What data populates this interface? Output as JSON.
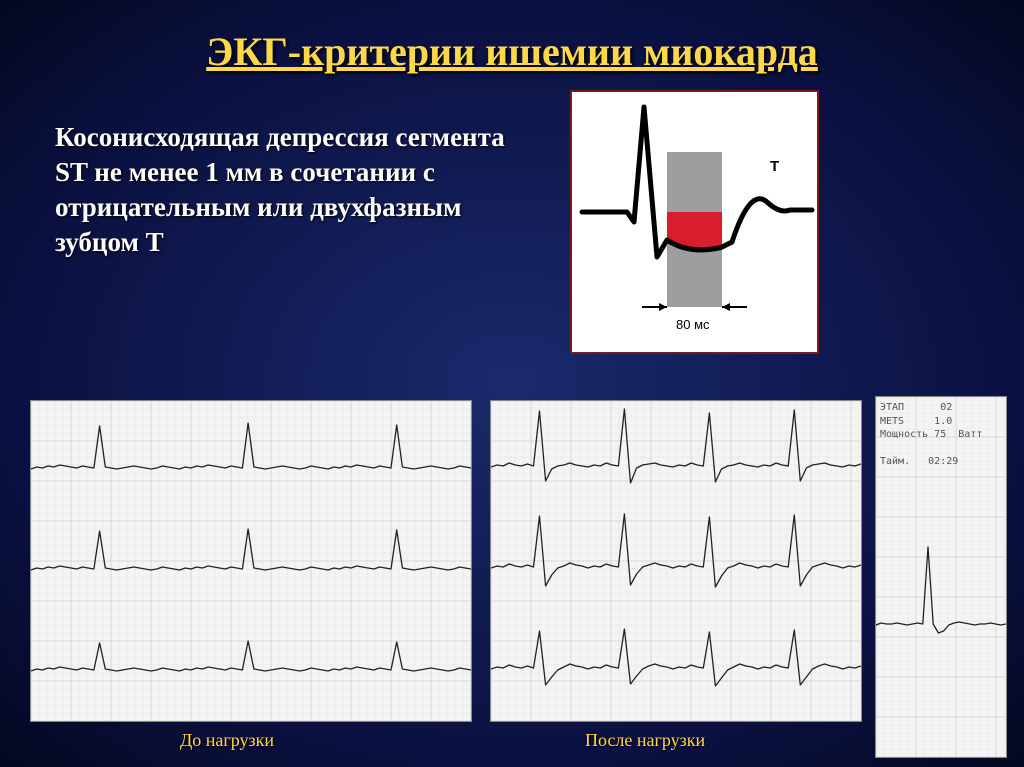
{
  "title": "ЭКГ-критерии ишемии миокарда",
  "body_text": "Косонисходящая депрессия сегмента ST не менее 1 мм в сочетании с отрицательным или двухфазным зубцом T",
  "diagram": {
    "t_label": "T",
    "duration_label": "80 мс",
    "bg": "#ffffff",
    "gray_band": "#9e9e9e",
    "red_fill": "#d81e2c",
    "waveform_stroke": "#000000",
    "arrow_stroke": "#000000"
  },
  "captions": {
    "left": "До нагрузки",
    "mid": "После нагрузки"
  },
  "right_info": "ЭТАП      02\nMETS     1.0\nМощность 75  Ватт\n\nТайм.   02:29",
  "ecg": {
    "grid_minor": "#e4e4e4",
    "grid_major": "#cfcfcf",
    "trace_stroke": "#222222",
    "left": {
      "rows": [
        [
          2,
          4,
          3,
          5,
          4,
          6,
          5,
          4,
          3,
          5,
          4,
          3,
          45,
          4,
          3,
          2,
          3,
          4,
          5,
          4,
          3,
          2,
          3,
          5,
          4,
          3,
          2,
          4,
          3,
          5,
          4,
          6,
          5,
          4,
          3,
          5,
          4,
          3,
          48,
          4,
          3,
          2,
          3,
          4,
          5,
          4,
          3,
          2,
          3,
          5,
          4,
          3,
          2,
          4,
          3,
          5,
          4,
          6,
          5,
          4,
          3,
          5,
          4,
          3,
          46,
          4,
          3,
          2,
          3,
          4,
          5,
          4,
          3,
          2,
          3,
          5,
          4,
          3
        ],
        [
          1,
          3,
          2,
          4,
          3,
          5,
          4,
          3,
          2,
          4,
          3,
          2,
          40,
          3,
          2,
          1,
          2,
          3,
          4,
          3,
          2,
          1,
          2,
          4,
          3,
          2,
          1,
          3,
          2,
          4,
          3,
          5,
          4,
          3,
          2,
          4,
          3,
          2,
          42,
          3,
          2,
          1,
          2,
          3,
          4,
          3,
          2,
          1,
          2,
          4,
          3,
          2,
          1,
          3,
          2,
          4,
          3,
          5,
          4,
          3,
          2,
          4,
          3,
          2,
          41,
          3,
          2,
          1,
          2,
          3,
          4,
          3,
          2,
          1,
          2,
          4,
          3,
          2
        ],
        [
          0,
          2,
          1,
          3,
          2,
          4,
          3,
          2,
          1,
          3,
          2,
          1,
          28,
          2,
          1,
          0,
          1,
          2,
          3,
          2,
          1,
          0,
          1,
          3,
          2,
          1,
          0,
          2,
          1,
          3,
          2,
          4,
          3,
          2,
          1,
          3,
          2,
          1,
          30,
          2,
          1,
          0,
          1,
          2,
          3,
          2,
          1,
          0,
          1,
          3,
          2,
          1,
          0,
          2,
          1,
          3,
          2,
          4,
          3,
          2,
          1,
          3,
          2,
          1,
          29,
          2,
          1,
          0,
          1,
          2,
          3,
          2,
          1,
          0,
          1,
          3,
          2,
          1
        ]
      ]
    },
    "mid": {
      "rows": [
        [
          4,
          6,
          5,
          8,
          6,
          5,
          7,
          5,
          60,
          -10,
          2,
          5,
          6,
          8,
          6,
          5,
          4,
          6,
          5,
          8,
          6,
          5,
          62,
          -12,
          3,
          6,
          7,
          8,
          6,
          5,
          4,
          6,
          5,
          8,
          6,
          5,
          58,
          -11,
          2,
          5,
          6,
          8,
          6,
          5,
          4,
          6,
          5,
          8,
          6,
          5,
          61,
          -10,
          3,
          6,
          7,
          8,
          6,
          5,
          4,
          6,
          5,
          7
        ],
        [
          3,
          5,
          4,
          7,
          5,
          4,
          6,
          4,
          55,
          -15,
          -4,
          3,
          5,
          8,
          6,
          5,
          3,
          5,
          4,
          7,
          5,
          4,
          57,
          -14,
          -3,
          4,
          6,
          8,
          6,
          5,
          3,
          5,
          4,
          7,
          5,
          4,
          54,
          -16,
          -5,
          3,
          5,
          8,
          6,
          5,
          3,
          5,
          4,
          7,
          5,
          4,
          56,
          -15,
          -4,
          4,
          6,
          8,
          6,
          5,
          3,
          5,
          4,
          6
        ],
        [
          2,
          4,
          3,
          6,
          4,
          3,
          5,
          3,
          40,
          -14,
          -6,
          1,
          4,
          7,
          5,
          4,
          2,
          4,
          3,
          6,
          4,
          3,
          42,
          -13,
          -5,
          2,
          5,
          7,
          5,
          4,
          2,
          4,
          3,
          6,
          4,
          3,
          39,
          -15,
          -7,
          1,
          4,
          7,
          5,
          4,
          2,
          4,
          3,
          6,
          4,
          3,
          41,
          -14,
          -6,
          2,
          5,
          7,
          5,
          4,
          2,
          4,
          3,
          5
        ]
      ]
    },
    "right": {
      "row": [
        2,
        4,
        3,
        3,
        4,
        3,
        2,
        3,
        4,
        3,
        80,
        3,
        -6,
        -4,
        2,
        4,
        5,
        4,
        3,
        2,
        3,
        3,
        4,
        3,
        2,
        3
      ]
    }
  },
  "colors": {
    "title": "#ffd84a",
    "text": "#ffffff",
    "caption": "#ffd84a"
  }
}
